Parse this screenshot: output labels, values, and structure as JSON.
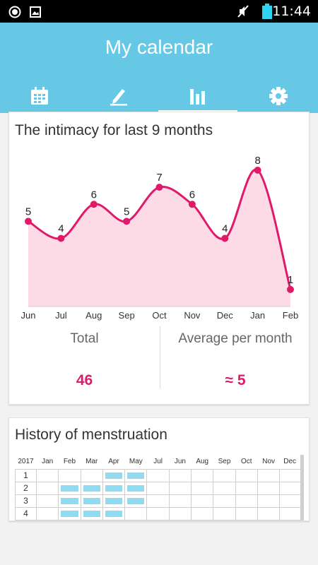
{
  "status_bar": {
    "time": "11:44"
  },
  "header": {
    "title": "My calendar",
    "tabs": [
      {
        "name": "calendar-icon",
        "active": false
      },
      {
        "name": "edit-icon",
        "active": false
      },
      {
        "name": "bar-chart-icon",
        "active": true
      },
      {
        "name": "gear-icon",
        "active": false
      }
    ]
  },
  "intimacy": {
    "title": "The intimacy for last 9 months",
    "total_label": "Total",
    "total_value": "46",
    "average_label": "Average per month",
    "average_value": "≈ 5"
  },
  "chart_data": {
    "type": "area",
    "title": "The intimacy for last 9 months",
    "categories": [
      "Jun",
      "Jul",
      "Aug",
      "Sep",
      "Oct",
      "Nov",
      "Dec",
      "Jan",
      "Feb"
    ],
    "values": [
      5,
      4,
      6,
      5,
      7,
      6,
      4,
      8,
      1
    ],
    "ylim": [
      0,
      8
    ],
    "line_color": "#e0196b",
    "fill_color": "#fcdbe6"
  },
  "history": {
    "title": "History of menstruation",
    "year": "2017",
    "months": [
      "Jan",
      "Feb",
      "Mar",
      "Apr",
      "May",
      "Jul",
      "Jun",
      "Aug",
      "Sep",
      "Oct",
      "Nov",
      "Dec"
    ],
    "rows": [
      {
        "label": "1",
        "marks": [
          false,
          false,
          false,
          true,
          true,
          false,
          false,
          false,
          false,
          false,
          false,
          false
        ]
      },
      {
        "label": "2",
        "marks": [
          false,
          true,
          true,
          true,
          true,
          false,
          false,
          false,
          false,
          false,
          false,
          false
        ]
      },
      {
        "label": "3",
        "marks": [
          false,
          true,
          true,
          true,
          true,
          false,
          false,
          false,
          false,
          false,
          false,
          false
        ]
      },
      {
        "label": "4",
        "marks": [
          false,
          true,
          true,
          true,
          false,
          false,
          false,
          false,
          false,
          false,
          false,
          false
        ]
      }
    ],
    "mark_color": "#90dbef"
  }
}
